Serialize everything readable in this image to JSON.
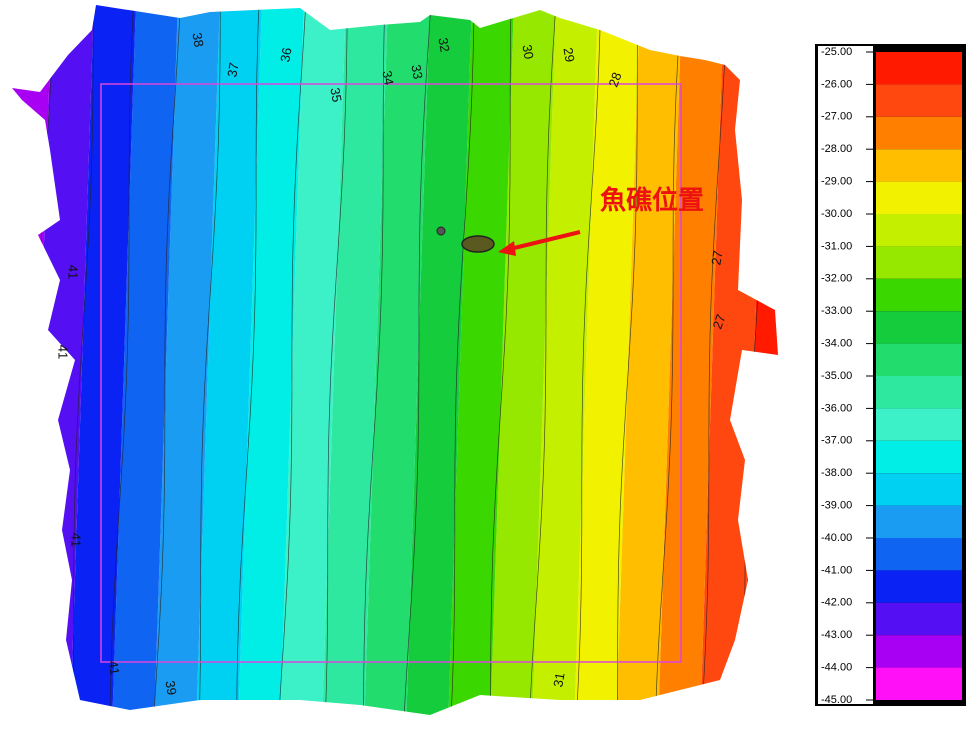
{
  "map": {
    "annotation": "魚礁位置",
    "contour_labels": [
      "38",
      "37",
      "36",
      "35",
      "34",
      "33",
      "32",
      "30",
      "29",
      "28",
      "27",
      "27",
      "41",
      "41",
      "41",
      "39",
      "31",
      "41"
    ],
    "legend": {
      "labels": [
        "-25.00",
        "-26.00",
        "-27.00",
        "-28.00",
        "-29.00",
        "-30.00",
        "-31.00",
        "-32.00",
        "-33.00",
        "-34.00",
        "-35.00",
        "-36.00",
        "-37.00",
        "-38.00",
        "-39.00",
        "-40.00",
        "-41.00",
        "-42.00",
        "-43.00",
        "-44.00",
        "-45.00"
      ],
      "colors": [
        "#ff1a00",
        "#ff4810",
        "#ff7f00",
        "#ffbe00",
        "#f2f200",
        "#c4f000",
        "#96e800",
        "#3ad800",
        "#14cc3c",
        "#22dc6e",
        "#2ee8a0",
        "#3cf0c8",
        "#00eee6",
        "#00d0f2",
        "#1a9cf2",
        "#1064f2",
        "#0a22f4",
        "#5410f2",
        "#a800f2",
        "#ff10f6"
      ]
    }
  }
}
